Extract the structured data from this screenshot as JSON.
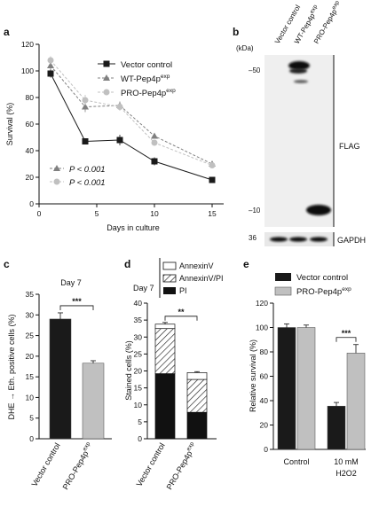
{
  "panels": {
    "a": {
      "letter": "a"
    },
    "b": {
      "letter": "b"
    },
    "c": {
      "letter": "c"
    },
    "d": {
      "letter": "d"
    },
    "e": {
      "letter": "e"
    }
  },
  "chart_data": [
    {
      "panel": "a",
      "type": "line",
      "xlabel": "Days in culture",
      "ylabel": "Survival (%)",
      "xlim": [
        0,
        16
      ],
      "ylim": [
        0,
        120
      ],
      "xticks": [
        0,
        5,
        10,
        15
      ],
      "yticks": [
        0,
        20,
        40,
        60,
        80,
        100,
        120
      ],
      "x": [
        1,
        4,
        7,
        10,
        15
      ],
      "series": [
        {
          "name": "Vector control",
          "values": [
            98,
            47,
            48,
            32,
            18
          ],
          "error": [
            3,
            2,
            4,
            3,
            1
          ],
          "color": "#1a1a1a",
          "marker": "square",
          "dash": "solid"
        },
        {
          "name": "WT-Pep4p",
          "name_sup": "exp",
          "values": [
            104,
            73,
            74,
            51,
            30
          ],
          "error": [
            3,
            4,
            3,
            2,
            2
          ],
          "color": "#808080",
          "marker": "triangle",
          "dash": "dashed"
        },
        {
          "name": "PRO-Pep4p",
          "name_sup": "exp",
          "values": [
            108,
            78,
            73,
            46,
            29
          ],
          "error": [
            3,
            4,
            3,
            2,
            2
          ],
          "color": "#c0c0c0",
          "marker": "circle",
          "dash": "dashed"
        }
      ],
      "legend_position": "top-right",
      "annotations": [
        {
          "marker": "triangle",
          "text": "P < 0.001"
        },
        {
          "marker": "circle",
          "text": "P < 0.001"
        }
      ]
    },
    {
      "panel": "b",
      "type": "blot",
      "lanes": [
        "Vector control",
        "WT-Pep4p",
        "PRO-Pep4p"
      ],
      "lane_sups": [
        "",
        "exp",
        "exp"
      ],
      "unit_label": "(kDa)",
      "markers": [
        "50",
        "10"
      ],
      "gapdh_marker": "36",
      "labels": {
        "flag": "FLAG",
        "gapdh": "GAPDH"
      }
    },
    {
      "panel": "c",
      "type": "bar",
      "title": "Day 7",
      "ylabel": "DHE → Eth. positive cells (%)",
      "ylim": [
        0,
        35
      ],
      "yticks": [
        0,
        5,
        10,
        15,
        20,
        25,
        30,
        35
      ],
      "categories": [
        "Vector control",
        "PRO-Pep4p"
      ],
      "category_sups": [
        "",
        "exp"
      ],
      "values": [
        29,
        18.3
      ],
      "error": [
        1.5,
        0.6
      ],
      "colors": [
        "#1a1a1a",
        "#c0c0c0"
      ],
      "significance": "***"
    },
    {
      "panel": "d",
      "type": "bar",
      "stacked": true,
      "title": "Day 7",
      "ylabel": "Stained cells (%)",
      "ylim": [
        0,
        40
      ],
      "yticks": [
        0,
        5,
        10,
        15,
        20,
        25,
        30,
        35,
        40
      ],
      "categories": [
        "Vector control",
        "PRO-Pep4p"
      ],
      "category_sups": [
        "",
        "exp"
      ],
      "series": [
        {
          "name": "PI",
          "values": [
            19.2,
            7.8
          ],
          "fill": "black"
        },
        {
          "name": "AnnexinV/PI",
          "values": [
            13.3,
            9.7
          ],
          "fill": "hatch"
        },
        {
          "name": "AnnexinV",
          "values": [
            1.3,
            2.0
          ],
          "fill": "white"
        }
      ],
      "error": [
        0.5,
        0.3
      ],
      "significance": "**"
    },
    {
      "panel": "e",
      "type": "bar",
      "ylabel": "Relative survival (%)",
      "ylim": [
        0,
        120
      ],
      "yticks": [
        0,
        20,
        40,
        60,
        80,
        100,
        120
      ],
      "categories": [
        "Control",
        "10 mM"
      ],
      "category_line2": [
        "",
        "H2O2"
      ],
      "series": [
        {
          "name": "Vector control",
          "values": [
            100,
            35.5
          ],
          "error": [
            3,
            3
          ],
          "color": "#1a1a1a"
        },
        {
          "name": "PRO-Pep4p",
          "name_sup": "exp",
          "values": [
            100,
            79
          ],
          "error": [
            2,
            7
          ],
          "color": "#c0c0c0"
        }
      ],
      "significance": "***"
    }
  ]
}
